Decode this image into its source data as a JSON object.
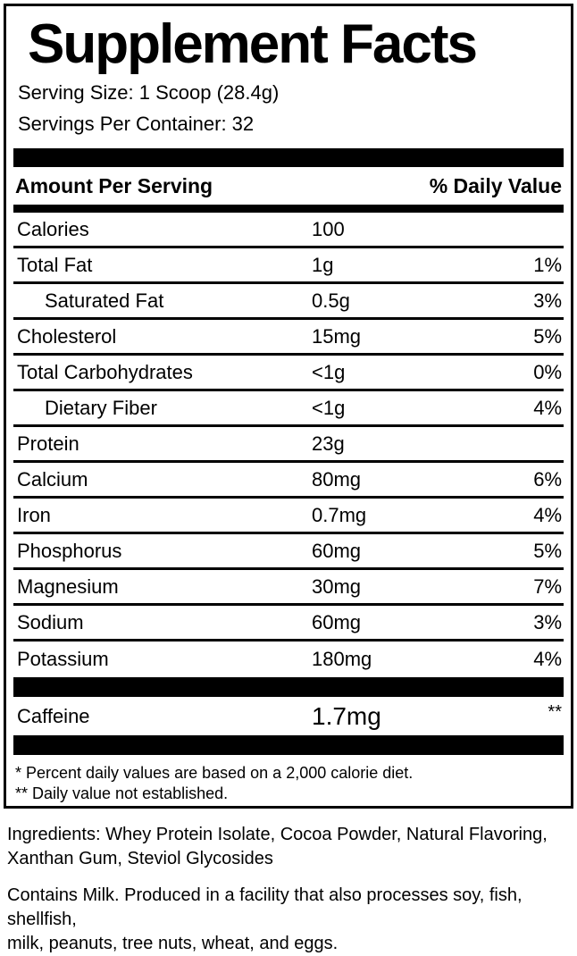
{
  "label": {
    "title": "Supplement Facts",
    "serving_size": "Serving Size: 1 Scoop (28.4g)",
    "servings_per_container": "Servings Per Container: 32",
    "header": {
      "amount_per_serving": "Amount Per Serving",
      "daily_value": "% Daily Value"
    },
    "rows": [
      {
        "name": "Calories",
        "amount": "100",
        "dv": ""
      },
      {
        "name": "Total Fat",
        "amount": "1g",
        "dv": "1%"
      },
      {
        "name": "Saturated Fat",
        "amount": "0.5g",
        "dv": "3%"
      },
      {
        "name": "Cholesterol",
        "amount": "15mg",
        "dv": "5%"
      },
      {
        "name": "Total Carbohydrates",
        "amount": "<1g",
        "dv": "0%"
      },
      {
        "name": "Dietary Fiber",
        "amount": "<1g",
        "dv": "4%"
      },
      {
        "name": "Protein",
        "amount": "23g",
        "dv": ""
      },
      {
        "name": "Calcium",
        "amount": "80mg",
        "dv": "6%"
      },
      {
        "name": "Iron",
        "amount": "0.7mg",
        "dv": "4%"
      },
      {
        "name": "Phosphorus",
        "amount": "60mg",
        "dv": "5%"
      },
      {
        "name": "Magnesium",
        "amount": "30mg",
        "dv": "7%"
      },
      {
        "name": "Sodium",
        "amount": "60mg",
        "dv": "3%"
      },
      {
        "name": "Potassium",
        "amount": "180mg",
        "dv": "4%"
      }
    ],
    "caffeine": {
      "name": "Caffeine",
      "amount": "1.7mg",
      "dv": "**"
    },
    "footnotes": {
      "line1": "* Percent daily values are based on a 2,000 calorie diet.",
      "line2": "** Daily value not established."
    }
  },
  "ingredients": {
    "line1": "Ingredients: Whey Protein Isolate, Cocoa Powder, Natural Flavoring,",
    "line2": "Xanthan Gum, Steviol Glycosides"
  },
  "allergens": {
    "line1": "Contains Milk. Produced in a facility that also processes soy, fish, shellfish,",
    "line2": "milk, peanuts, tree nuts, wheat, and eggs."
  },
  "colors": {
    "text": "#000000",
    "background": "#ffffff",
    "bar": "#000000"
  }
}
